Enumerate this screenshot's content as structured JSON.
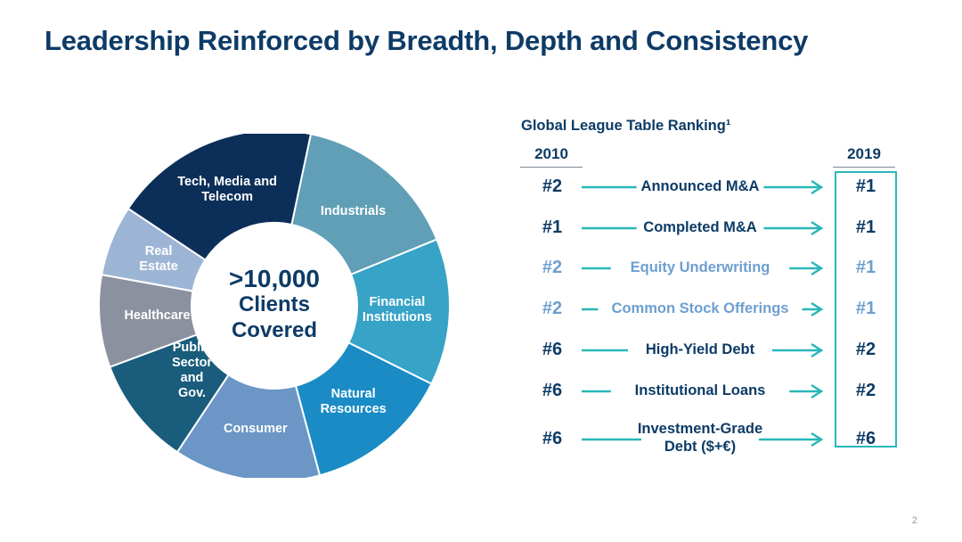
{
  "title": "Leadership Reinforced by Breadth, Depth and Consistency",
  "page_number": "2",
  "colors": {
    "navy": "#0d3b66",
    "light_blue": "#6d9fd0",
    "teal": "#2ab7b9"
  },
  "donut": {
    "center": {
      "line1": ">10,000",
      "line2": "Clients",
      "line3": "Covered"
    }
  },
  "ranking": {
    "title": "Global League Table Ranking¹",
    "year_from": "2010",
    "year_to": "2019"
  },
  "chart_data": [
    {
      "type": "pie",
      "variant": "donut",
      "categories": [
        "Industrials",
        "Financial\nInstitutions",
        "Natural\nResources",
        "Consumer",
        "Public\nSector\nand\nGov.",
        "Healthcare",
        "Real\nEstate",
        "Tech, Media and\nTelecom"
      ],
      "values": [
        15.5,
        13.5,
        13.5,
        13.5,
        10,
        8.5,
        6.5,
        19
      ],
      "colors": [
        "#609fb6",
        "#37a3c6",
        "#1a8bc4",
        "#6b96c5",
        "#195c7b",
        "#8b919f",
        "#9db5d5",
        "#0c2f59"
      ],
      "title": "",
      "center_label": ">10,000 Clients Covered"
    },
    {
      "type": "table",
      "title": "Global League Table Ranking¹",
      "columns": [
        "2010",
        "",
        "2019"
      ],
      "rows": [
        {
          "category": "Announced M&A",
          "rank_2010": "#2",
          "rank_2019": "#1",
          "highlight": false
        },
        {
          "category": "Completed M&A",
          "rank_2010": "#1",
          "rank_2019": "#1",
          "highlight": false
        },
        {
          "category": "Equity Underwriting",
          "rank_2010": "#2",
          "rank_2019": "#1",
          "highlight": true
        },
        {
          "category": "Common Stock Offerings",
          "rank_2010": "#2",
          "rank_2019": "#1",
          "highlight": true
        },
        {
          "category": "High-Yield Debt",
          "rank_2010": "#6",
          "rank_2019": "#2",
          "highlight": false
        },
        {
          "category": "Institutional Loans",
          "rank_2010": "#6",
          "rank_2019": "#2",
          "highlight": false
        },
        {
          "category": "Investment-Grade\nDebt ($+€)",
          "rank_2010": "#6",
          "rank_2019": "#6",
          "highlight": false
        }
      ]
    }
  ]
}
